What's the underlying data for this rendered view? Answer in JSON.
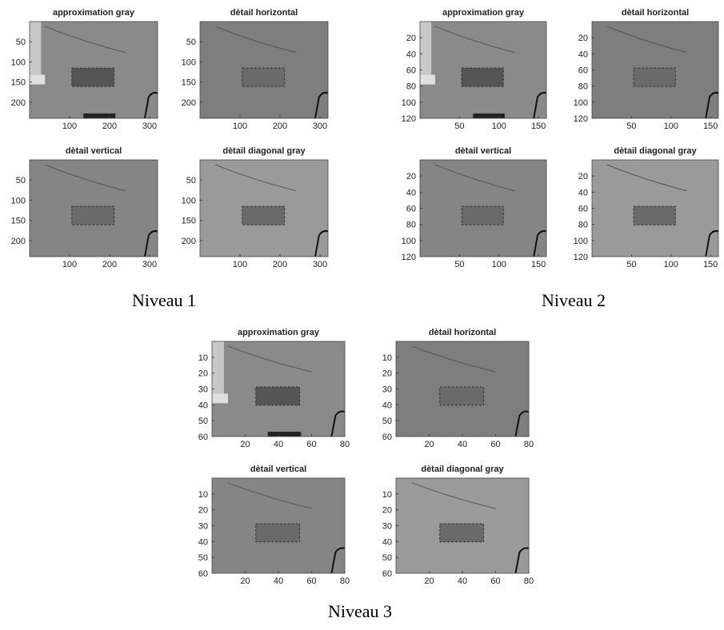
{
  "figures": [
    {
      "caption": "Niveau 1",
      "xlim": [
        0,
        320
      ],
      "ylim": [
        0,
        240
      ],
      "xticks": [
        100,
        200,
        300
      ],
      "yticks": [
        50,
        100,
        150,
        200
      ],
      "panels": [
        {
          "title": "approximation gray"
        },
        {
          "title": "dètail horizontal"
        },
        {
          "title": "dètail vertical"
        },
        {
          "title": "dètail diagonal gray"
        }
      ]
    },
    {
      "caption": "Niveau 2",
      "xlim": [
        0,
        160
      ],
      "ylim": [
        0,
        120
      ],
      "xticks": [
        50,
        100,
        150
      ],
      "yticks": [
        20,
        40,
        60,
        80,
        100,
        120
      ],
      "panels": [
        {
          "title": "approximation gray"
        },
        {
          "title": "dètail horizontal"
        },
        {
          "title": "dètail vertical"
        },
        {
          "title": "dètail diagonal gray"
        }
      ]
    },
    {
      "caption": "Niveau 3",
      "xlim": [
        0,
        80
      ],
      "ylim": [
        0,
        60
      ],
      "xticks": [
        20,
        40,
        60,
        80
      ],
      "yticks": [
        10,
        20,
        30,
        40,
        50,
        60
      ],
      "panels": [
        {
          "title": "approximation gray"
        },
        {
          "title": "dètail horizontal"
        },
        {
          "title": "dètail vertical"
        },
        {
          "title": "dètail diagonal gray"
        }
      ]
    }
  ]
}
